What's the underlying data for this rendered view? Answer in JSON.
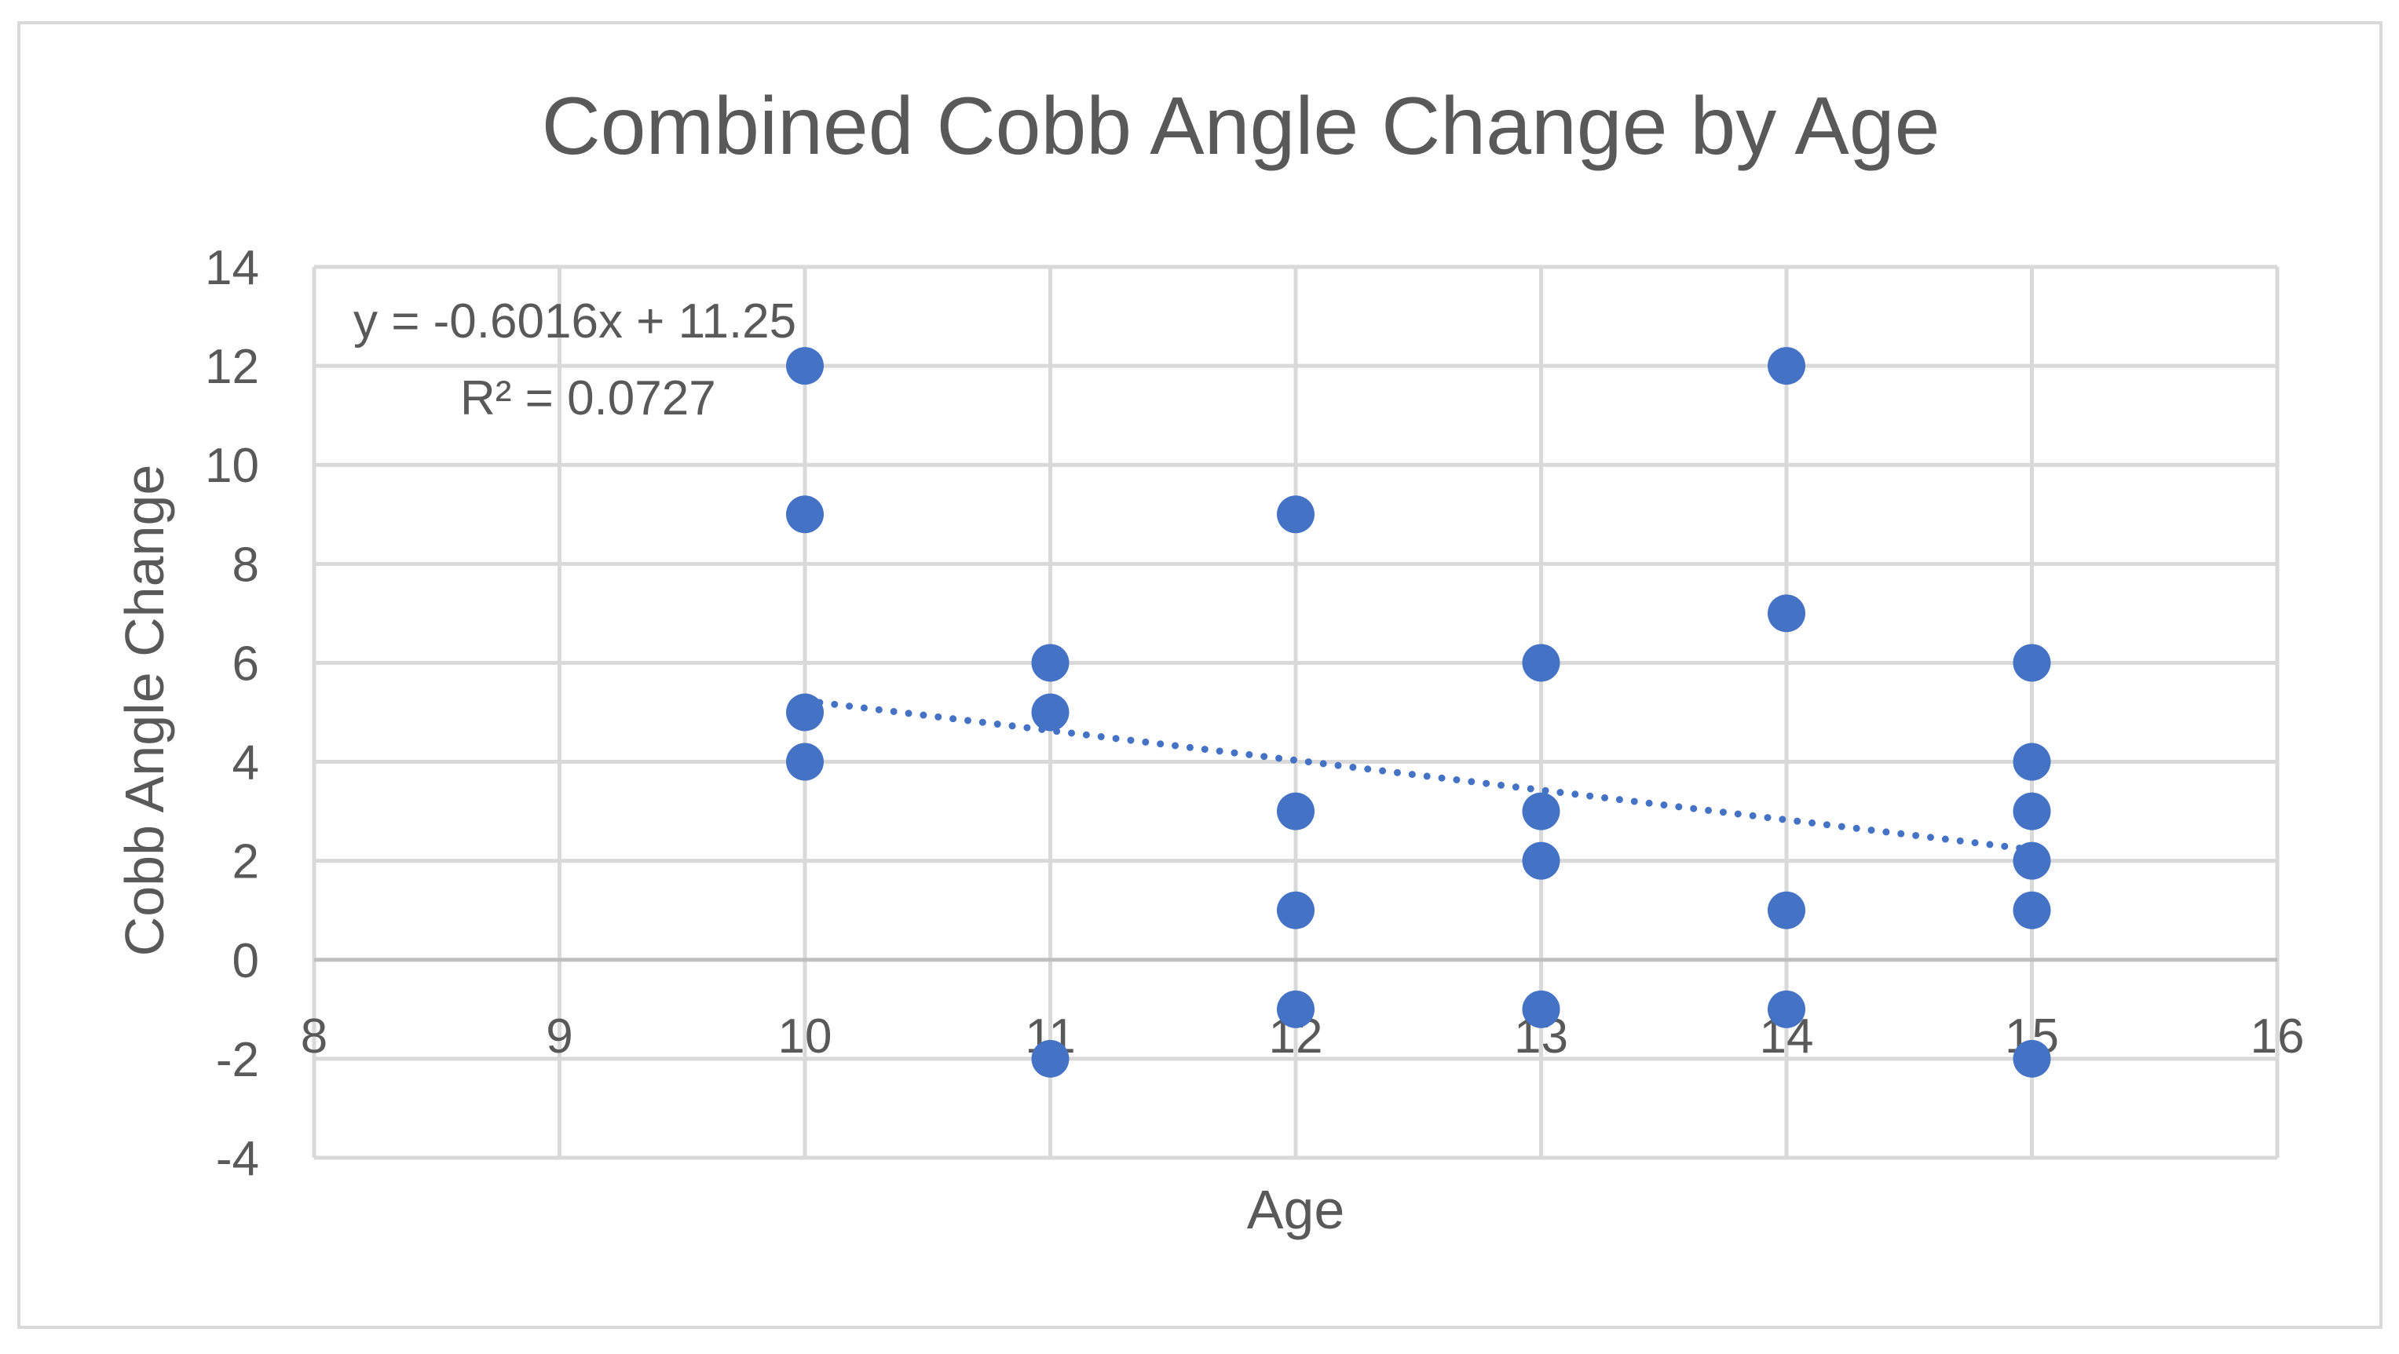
{
  "chart_data": {
    "type": "scatter",
    "title": "Combined Cobb Angle Change by Age",
    "xlabel": "Age",
    "ylabel": "Cobb Angle Change",
    "xlim": [
      8,
      16
    ],
    "ylim": [
      -4,
      14
    ],
    "x_ticks": [
      8,
      9,
      10,
      11,
      12,
      13,
      14,
      15,
      16
    ],
    "y_ticks": [
      -4,
      -2,
      0,
      2,
      4,
      6,
      8,
      10,
      12,
      14
    ],
    "grid": true,
    "legend": "none",
    "series": [
      {
        "name": "Cobb Angle Change",
        "color": "#4472C4",
        "points": [
          {
            "x": 10,
            "y": 12
          },
          {
            "x": 10,
            "y": 9
          },
          {
            "x": 10,
            "y": 5
          },
          {
            "x": 10,
            "y": 4
          },
          {
            "x": 11,
            "y": 6
          },
          {
            "x": 11,
            "y": 5
          },
          {
            "x": 11,
            "y": -2
          },
          {
            "x": 12,
            "y": 9
          },
          {
            "x": 12,
            "y": 3
          },
          {
            "x": 12,
            "y": 1
          },
          {
            "x": 12,
            "y": -1
          },
          {
            "x": 13,
            "y": 6
          },
          {
            "x": 13,
            "y": 3
          },
          {
            "x": 13,
            "y": 2
          },
          {
            "x": 13,
            "y": -1
          },
          {
            "x": 14,
            "y": 12
          },
          {
            "x": 14,
            "y": 7
          },
          {
            "x": 14,
            "y": 1
          },
          {
            "x": 14,
            "y": -1
          },
          {
            "x": 15,
            "y": 6
          },
          {
            "x": 15,
            "y": 4
          },
          {
            "x": 15,
            "y": 3
          },
          {
            "x": 15,
            "y": 2
          },
          {
            "x": 15,
            "y": 1
          },
          {
            "x": 15,
            "y": -2
          }
        ]
      }
    ],
    "trendline": {
      "type": "linear",
      "slope": -0.6016,
      "intercept": 11.25,
      "x_range": [
        10,
        15
      ],
      "color": "#4472C4",
      "style": "dotted",
      "equation_label": "y = -0.6016x + 11.25",
      "r2_label": "R² = 0.0727"
    }
  }
}
